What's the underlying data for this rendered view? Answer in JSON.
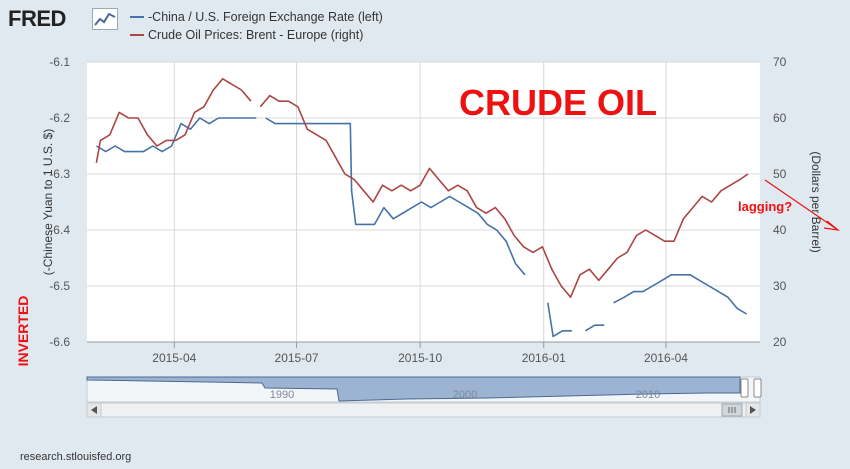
{
  "brand": {
    "logo_text": "FRED",
    "logo_mark": "chart-line-icon"
  },
  "footer": {
    "source": "research.stlouisfed.org"
  },
  "colors": {
    "china_line": "#4572a7",
    "oil_line": "#aa4643",
    "annotation_red": "#ee1111",
    "plot_bg": "#ffffff",
    "page_bg": "#e1e9f0",
    "navigator_fill": "#6d8fbd"
  },
  "chart_data": {
    "type": "line",
    "series": [
      {
        "name": "-China / U.S. Foreign Exchange Rate (left)",
        "axis": "left",
        "segments": [
          [
            [
              "2015-02-02",
              -6.25
            ],
            [
              "2015-02-09",
              -6.26
            ],
            [
              "2015-02-16",
              -6.25
            ],
            [
              "2015-02-23",
              -6.26
            ],
            [
              "2015-03-02",
              -6.26
            ],
            [
              "2015-03-09",
              -6.26
            ],
            [
              "2015-03-16",
              -6.25
            ],
            [
              "2015-03-23",
              -6.26
            ],
            [
              "2015-03-30",
              -6.25
            ],
            [
              "2015-04-06",
              -6.21
            ],
            [
              "2015-04-13",
              -6.22
            ],
            [
              "2015-04-20",
              -6.2
            ],
            [
              "2015-04-27",
              -6.21
            ],
            [
              "2015-05-04",
              -6.2
            ],
            [
              "2015-05-11",
              -6.2
            ],
            [
              "2015-05-18",
              -6.2
            ],
            [
              "2015-05-25",
              -6.2
            ],
            [
              "2015-06-01",
              -6.2
            ]
          ],
          [
            [
              "2015-06-08",
              -6.2
            ],
            [
              "2015-06-15",
              -6.21
            ],
            [
              "2015-06-22",
              -6.21
            ],
            [
              "2015-06-29",
              -6.21
            ],
            [
              "2015-07-06",
              -6.21
            ],
            [
              "2015-07-13",
              -6.21
            ],
            [
              "2015-07-20",
              -6.21
            ],
            [
              "2015-07-27",
              -6.21
            ],
            [
              "2015-08-03",
              -6.21
            ],
            [
              "2015-08-10",
              -6.21
            ],
            [
              "2015-08-11",
              -6.33
            ],
            [
              "2015-08-14",
              -6.39
            ],
            [
              "2015-08-21",
              -6.39
            ],
            [
              "2015-08-28",
              -6.39
            ],
            [
              "2015-09-04",
              -6.36
            ],
            [
              "2015-09-11",
              -6.38
            ],
            [
              "2015-09-18",
              -6.37
            ],
            [
              "2015-09-25",
              -6.36
            ],
            [
              "2015-10-02",
              -6.35
            ],
            [
              "2015-10-09",
              -6.36
            ],
            [
              "2015-10-16",
              -6.35
            ],
            [
              "2015-10-23",
              -6.34
            ],
            [
              "2015-10-30",
              -6.35
            ],
            [
              "2015-11-06",
              -6.36
            ],
            [
              "2015-11-13",
              -6.37
            ],
            [
              "2015-11-20",
              -6.39
            ],
            [
              "2015-11-27",
              -6.4
            ],
            [
              "2015-12-04",
              -6.42
            ],
            [
              "2015-12-11",
              -6.46
            ],
            [
              "2015-12-18",
              -6.48
            ]
          ],
          [
            [
              "2016-01-04",
              -6.53
            ],
            [
              "2016-01-08",
              -6.59
            ],
            [
              "2016-01-15",
              -6.58
            ],
            [
              "2016-01-22",
              -6.58
            ]
          ],
          [
            [
              "2016-02-01",
              -6.58
            ],
            [
              "2016-02-08",
              -6.57
            ],
            [
              "2016-02-15",
              -6.57
            ]
          ],
          [
            [
              "2016-02-22",
              -6.53
            ],
            [
              "2016-03-01",
              -6.52
            ],
            [
              "2016-03-08",
              -6.51
            ],
            [
              "2016-03-15",
              -6.51
            ],
            [
              "2016-03-22",
              -6.5
            ],
            [
              "2016-03-29",
              -6.49
            ],
            [
              "2016-04-05",
              -6.48
            ],
            [
              "2016-04-12",
              -6.48
            ],
            [
              "2016-04-19",
              -6.48
            ],
            [
              "2016-04-26",
              -6.49
            ],
            [
              "2016-05-03",
              -6.5
            ],
            [
              "2016-05-10",
              -6.51
            ],
            [
              "2016-05-17",
              -6.52
            ],
            [
              "2016-05-24",
              -6.54
            ],
            [
              "2016-05-31",
              -6.55
            ]
          ]
        ]
      },
      {
        "name": "Crude Oil Prices: Brent - Europe (right)",
        "axis": "right",
        "segments": [
          [
            [
              "2015-02-02",
              52
            ],
            [
              "2015-02-05",
              56
            ],
            [
              "2015-02-12",
              57
            ],
            [
              "2015-02-19",
              61
            ],
            [
              "2015-02-26",
              60
            ],
            [
              "2015-03-05",
              60
            ],
            [
              "2015-03-12",
              57
            ],
            [
              "2015-03-19",
              55
            ],
            [
              "2015-03-26",
              56
            ],
            [
              "2015-04-02",
              56
            ],
            [
              "2015-04-09",
              57
            ],
            [
              "2015-04-16",
              61
            ],
            [
              "2015-04-23",
              62
            ],
            [
              "2015-04-30",
              65
            ],
            [
              "2015-05-07",
              67
            ],
            [
              "2015-05-14",
              66
            ],
            [
              "2015-05-21",
              65
            ],
            [
              "2015-05-28",
              63
            ]
          ],
          [
            [
              "2015-06-04",
              62
            ],
            [
              "2015-06-11",
              64
            ],
            [
              "2015-06-18",
              63
            ],
            [
              "2015-06-25",
              63
            ],
            [
              "2015-07-02",
              62
            ],
            [
              "2015-07-09",
              58
            ],
            [
              "2015-07-16",
              57
            ],
            [
              "2015-07-23",
              56
            ],
            [
              "2015-07-30",
              53
            ],
            [
              "2015-08-06",
              50
            ],
            [
              "2015-08-13",
              49
            ],
            [
              "2015-08-20",
              47
            ],
            [
              "2015-08-27",
              45
            ],
            [
              "2015-09-03",
              48
            ],
            [
              "2015-09-10",
              47
            ],
            [
              "2015-09-17",
              48
            ],
            [
              "2015-09-24",
              47
            ],
            [
              "2015-10-01",
              48
            ],
            [
              "2015-10-08",
              51
            ],
            [
              "2015-10-15",
              49
            ],
            [
              "2015-10-22",
              47
            ],
            [
              "2015-10-29",
              48
            ],
            [
              "2015-11-05",
              47
            ],
            [
              "2015-11-12",
              44
            ],
            [
              "2015-11-19",
              43
            ],
            [
              "2015-11-26",
              44
            ],
            [
              "2015-12-03",
              42
            ],
            [
              "2015-12-10",
              39
            ],
            [
              "2015-12-17",
              37
            ],
            [
              "2015-12-24",
              36
            ],
            [
              "2015-12-31",
              37
            ],
            [
              "2016-01-07",
              33
            ],
            [
              "2016-01-14",
              30
            ],
            [
              "2016-01-21",
              28
            ],
            [
              "2016-01-28",
              32
            ],
            [
              "2016-02-04",
              33
            ],
            [
              "2016-02-11",
              31
            ],
            [
              "2016-02-18",
              33
            ],
            [
              "2016-02-25",
              35
            ],
            [
              "2016-03-03",
              36
            ],
            [
              "2016-03-10",
              39
            ],
            [
              "2016-03-17",
              40
            ],
            [
              "2016-03-24",
              39
            ],
            [
              "2016-03-31",
              38
            ],
            [
              "2016-04-07",
              38
            ],
            [
              "2016-04-14",
              42
            ],
            [
              "2016-04-21",
              44
            ],
            [
              "2016-04-28",
              46
            ],
            [
              "2016-05-05",
              45
            ],
            [
              "2016-05-12",
              47
            ],
            [
              "2016-05-19",
              48
            ],
            [
              "2016-05-26",
              49
            ],
            [
              "2016-06-01",
              50
            ]
          ]
        ]
      }
    ],
    "left_axis": {
      "label": "(-Chinese Yuan to 1 U.S. $)",
      "range": [
        -6.6,
        -6.1
      ],
      "ticks": [
        "-6.1",
        "-6.2",
        "-6.3",
        "-6.4",
        "-6.5",
        "-6.6"
      ]
    },
    "right_axis": {
      "label": "(Dollars per Barrel)",
      "range": [
        20,
        70
      ],
      "ticks": [
        "70",
        "60",
        "50",
        "40",
        "30",
        "20"
      ]
    },
    "x_axis": {
      "range": [
        "2015-01-26",
        "2016-06-10"
      ],
      "ticks": [
        [
          "2015-04-01",
          "2015-04"
        ],
        [
          "2015-07-01",
          "2015-07"
        ],
        [
          "2015-10-01",
          "2015-10"
        ],
        [
          "2016-01-01",
          "2016-01"
        ],
        [
          "2016-04-01",
          "2016-04"
        ]
      ]
    },
    "annotations": {
      "big_label": "CRUDE OIL",
      "side_label": "INVERTED",
      "lag_label": "lagging?"
    },
    "navigator": {
      "labels": [
        "1990",
        "2000",
        "2010"
      ]
    },
    "grid": true
  }
}
